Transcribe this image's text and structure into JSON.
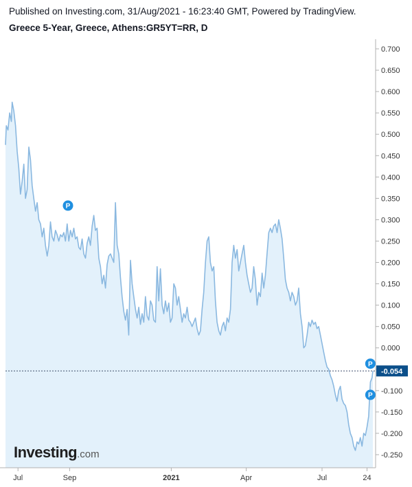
{
  "header": {
    "published": "Published on Investing.com, 31/Aug/2021 - 16:23:40 GMT, Powered by TradingView.",
    "symbol": "Greece 5-Year, Greece, Athens:GR5YT=RR, D"
  },
  "logo": {
    "main": "Investing",
    "suffix": ".com"
  },
  "chart_data": {
    "type": "area",
    "y_ticks": [
      "0.700",
      "0.650",
      "0.600",
      "0.550",
      "0.500",
      "0.450",
      "0.400",
      "0.350",
      "0.300",
      "0.250",
      "0.200",
      "0.150",
      "0.100",
      "0.050",
      "0.000",
      "-0.050",
      "-0.100",
      "-0.150",
      "-0.200",
      "-0.250"
    ],
    "ylim": [
      -0.28,
      0.72
    ],
    "x_ticks": [
      "Jul",
      "Sep",
      "2021",
      "Apr",
      "Jul",
      "24"
    ],
    "last_value_label": "-0.054",
    "last_value": -0.054,
    "grid": false,
    "colors": {
      "line": "#8ab8e0",
      "fill": "#e3f1fb",
      "marker": "#1f8fe0",
      "label_bg": "#0b4f8a",
      "dashed": "#3f4f6b"
    },
    "markers": [
      {
        "label": "P",
        "date": "2020-08-30",
        "y": 0.333
      },
      {
        "label": "P",
        "date": "2021-08-28",
        "y": -0.037
      },
      {
        "label": "P",
        "date": "2021-08-28",
        "y": -0.11
      }
    ],
    "series": [
      {
        "values": [
          [
            "2020-06-16",
            0.475
          ],
          [
            "2020-06-17",
            0.52
          ],
          [
            "2020-06-19",
            0.51
          ],
          [
            "2020-06-21",
            0.55
          ],
          [
            "2020-06-23",
            0.53
          ],
          [
            "2020-06-24",
            0.575
          ],
          [
            "2020-06-26",
            0.555
          ],
          [
            "2020-06-28",
            0.52
          ],
          [
            "2020-06-30",
            0.46
          ],
          [
            "2020-07-02",
            0.42
          ],
          [
            "2020-07-04",
            0.36
          ],
          [
            "2020-07-06",
            0.39
          ],
          [
            "2020-07-08",
            0.43
          ],
          [
            "2020-07-10",
            0.35
          ],
          [
            "2020-07-12",
            0.37
          ],
          [
            "2020-07-14",
            0.47
          ],
          [
            "2020-07-16",
            0.44
          ],
          [
            "2020-07-18",
            0.38
          ],
          [
            "2020-07-20",
            0.35
          ],
          [
            "2020-07-22",
            0.32
          ],
          [
            "2020-07-24",
            0.34
          ],
          [
            "2020-07-26",
            0.3
          ],
          [
            "2020-07-28",
            0.29
          ],
          [
            "2020-07-30",
            0.26
          ],
          [
            "2020-08-01",
            0.28
          ],
          [
            "2020-08-03",
            0.24
          ],
          [
            "2020-08-05",
            0.215
          ],
          [
            "2020-08-07",
            0.24
          ],
          [
            "2020-08-09",
            0.295
          ],
          [
            "2020-08-11",
            0.26
          ],
          [
            "2020-08-13",
            0.25
          ],
          [
            "2020-08-15",
            0.275
          ],
          [
            "2020-08-17",
            0.265
          ],
          [
            "2020-08-19",
            0.25
          ],
          [
            "2020-08-21",
            0.265
          ],
          [
            "2020-08-23",
            0.26
          ],
          [
            "2020-08-25",
            0.27
          ],
          [
            "2020-08-27",
            0.25
          ],
          [
            "2020-08-29",
            0.29
          ],
          [
            "2020-08-31",
            0.25
          ],
          [
            "2020-09-02",
            0.275
          ],
          [
            "2020-09-04",
            0.26
          ],
          [
            "2020-09-06",
            0.28
          ],
          [
            "2020-09-08",
            0.255
          ],
          [
            "2020-09-10",
            0.26
          ],
          [
            "2020-09-12",
            0.235
          ],
          [
            "2020-09-14",
            0.23
          ],
          [
            "2020-09-16",
            0.255
          ],
          [
            "2020-09-18",
            0.22
          ],
          [
            "2020-09-20",
            0.21
          ],
          [
            "2020-09-22",
            0.245
          ],
          [
            "2020-09-24",
            0.26
          ],
          [
            "2020-09-26",
            0.24
          ],
          [
            "2020-09-28",
            0.285
          ],
          [
            "2020-09-30",
            0.31
          ],
          [
            "2020-10-02",
            0.275
          ],
          [
            "2020-10-04",
            0.28
          ],
          [
            "2020-10-06",
            0.21
          ],
          [
            "2020-10-08",
            0.19
          ],
          [
            "2020-10-10",
            0.15
          ],
          [
            "2020-10-12",
            0.17
          ],
          [
            "2020-10-14",
            0.14
          ],
          [
            "2020-10-16",
            0.195
          ],
          [
            "2020-10-18",
            0.215
          ],
          [
            "2020-10-20",
            0.22
          ],
          [
            "2020-10-22",
            0.21
          ],
          [
            "2020-10-24",
            0.2
          ],
          [
            "2020-10-26",
            0.34
          ],
          [
            "2020-10-28",
            0.24
          ],
          [
            "2020-10-30",
            0.22
          ],
          [
            "2020-11-01",
            0.165
          ],
          [
            "2020-11-03",
            0.12
          ],
          [
            "2020-11-05",
            0.085
          ],
          [
            "2020-11-07",
            0.065
          ],
          [
            "2020-11-09",
            0.09
          ],
          [
            "2020-11-11",
            0.03
          ],
          [
            "2020-11-13",
            0.205
          ],
          [
            "2020-11-15",
            0.15
          ],
          [
            "2020-11-17",
            0.12
          ],
          [
            "2020-11-19",
            0.09
          ],
          [
            "2020-11-21",
            0.07
          ],
          [
            "2020-11-23",
            0.095
          ],
          [
            "2020-11-25",
            0.055
          ],
          [
            "2020-11-27",
            0.08
          ],
          [
            "2020-11-29",
            0.06
          ],
          [
            "2020-12-01",
            0.12
          ],
          [
            "2020-12-03",
            0.075
          ],
          [
            "2020-12-05",
            0.065
          ],
          [
            "2020-12-07",
            0.11
          ],
          [
            "2020-12-09",
            0.1
          ],
          [
            "2020-12-11",
            0.065
          ],
          [
            "2020-12-13",
            0.06
          ],
          [
            "2020-12-15",
            0.19
          ],
          [
            "2020-12-17",
            0.11
          ],
          [
            "2020-12-19",
            0.185
          ],
          [
            "2020-12-21",
            0.1
          ],
          [
            "2020-12-23",
            0.08
          ],
          [
            "2020-12-25",
            0.11
          ],
          [
            "2020-12-27",
            0.085
          ],
          [
            "2020-12-29",
            0.105
          ],
          [
            "2020-12-31",
            0.06
          ],
          [
            "2021-01-02",
            0.07
          ],
          [
            "2021-01-04",
            0.15
          ],
          [
            "2021-01-06",
            0.14
          ],
          [
            "2021-01-08",
            0.1
          ],
          [
            "2021-01-10",
            0.12
          ],
          [
            "2021-01-12",
            0.09
          ],
          [
            "2021-01-14",
            0.06
          ],
          [
            "2021-01-16",
            0.08
          ],
          [
            "2021-01-18",
            0.07
          ],
          [
            "2021-01-20",
            0.095
          ],
          [
            "2021-01-22",
            0.065
          ],
          [
            "2021-01-24",
            0.06
          ],
          [
            "2021-01-26",
            0.05
          ],
          [
            "2021-01-28",
            0.06
          ],
          [
            "2021-01-30",
            0.07
          ],
          [
            "2021-02-01",
            0.045
          ],
          [
            "2021-02-03",
            0.03
          ],
          [
            "2021-02-05",
            0.04
          ],
          [
            "2021-02-07",
            0.09
          ],
          [
            "2021-02-09",
            0.13
          ],
          [
            "2021-02-11",
            0.2
          ],
          [
            "2021-02-13",
            0.25
          ],
          [
            "2021-02-15",
            0.26
          ],
          [
            "2021-02-17",
            0.2
          ],
          [
            "2021-02-19",
            0.18
          ],
          [
            "2021-02-21",
            0.19
          ],
          [
            "2021-02-23",
            0.11
          ],
          [
            "2021-02-25",
            0.06
          ],
          [
            "2021-02-27",
            0.04
          ],
          [
            "2021-03-01",
            0.03
          ],
          [
            "2021-03-03",
            0.05
          ],
          [
            "2021-03-05",
            0.06
          ],
          [
            "2021-03-07",
            0.04
          ],
          [
            "2021-03-09",
            0.07
          ],
          [
            "2021-03-11",
            0.06
          ],
          [
            "2021-03-13",
            0.09
          ],
          [
            "2021-03-15",
            0.2
          ],
          [
            "2021-03-17",
            0.24
          ],
          [
            "2021-03-19",
            0.21
          ],
          [
            "2021-03-21",
            0.23
          ],
          [
            "2021-03-23",
            0.18
          ],
          [
            "2021-03-25",
            0.2
          ],
          [
            "2021-03-27",
            0.22
          ],
          [
            "2021-03-29",
            0.24
          ],
          [
            "2021-03-31",
            0.2
          ],
          [
            "2021-04-02",
            0.17
          ],
          [
            "2021-04-04",
            0.15
          ],
          [
            "2021-04-06",
            0.13
          ],
          [
            "2021-04-08",
            0.14
          ],
          [
            "2021-04-10",
            0.19
          ],
          [
            "2021-04-12",
            0.16
          ],
          [
            "2021-04-14",
            0.1
          ],
          [
            "2021-04-16",
            0.13
          ],
          [
            "2021-04-18",
            0.12
          ],
          [
            "2021-04-20",
            0.175
          ],
          [
            "2021-04-22",
            0.14
          ],
          [
            "2021-04-24",
            0.17
          ],
          [
            "2021-04-26",
            0.22
          ],
          [
            "2021-04-28",
            0.27
          ],
          [
            "2021-04-30",
            0.28
          ],
          [
            "2021-05-02",
            0.27
          ],
          [
            "2021-05-04",
            0.285
          ],
          [
            "2021-05-06",
            0.29
          ],
          [
            "2021-05-08",
            0.27
          ],
          [
            "2021-05-10",
            0.3
          ],
          [
            "2021-05-12",
            0.28
          ],
          [
            "2021-05-14",
            0.255
          ],
          [
            "2021-05-16",
            0.21
          ],
          [
            "2021-05-18",
            0.16
          ],
          [
            "2021-05-20",
            0.14
          ],
          [
            "2021-05-22",
            0.13
          ],
          [
            "2021-05-24",
            0.11
          ],
          [
            "2021-05-26",
            0.13
          ],
          [
            "2021-05-28",
            0.12
          ],
          [
            "2021-05-30",
            0.1
          ],
          [
            "2021-06-01",
            0.11
          ],
          [
            "2021-06-03",
            0.14
          ],
          [
            "2021-06-05",
            0.08
          ],
          [
            "2021-06-07",
            0.05
          ],
          [
            "2021-06-09",
            0.0
          ],
          [
            "2021-06-11",
            0.005
          ],
          [
            "2021-06-13",
            0.03
          ],
          [
            "2021-06-15",
            0.06
          ],
          [
            "2021-06-17",
            0.05
          ],
          [
            "2021-06-19",
            0.065
          ],
          [
            "2021-06-21",
            0.055
          ],
          [
            "2021-06-23",
            0.06
          ],
          [
            "2021-06-25",
            0.045
          ],
          [
            "2021-06-27",
            0.05
          ],
          [
            "2021-06-29",
            0.03
          ],
          [
            "2021-07-01",
            0.01
          ],
          [
            "2021-07-03",
            -0.01
          ],
          [
            "2021-07-05",
            -0.03
          ],
          [
            "2021-07-07",
            -0.045
          ],
          [
            "2021-07-09",
            -0.05
          ],
          [
            "2021-07-11",
            -0.065
          ],
          [
            "2021-07-13",
            -0.075
          ],
          [
            "2021-07-15",
            -0.09
          ],
          [
            "2021-07-17",
            -0.11
          ],
          [
            "2021-07-19",
            -0.125
          ],
          [
            "2021-07-21",
            -0.1
          ],
          [
            "2021-07-23",
            -0.09
          ],
          [
            "2021-07-25",
            -0.12
          ],
          [
            "2021-07-27",
            -0.13
          ],
          [
            "2021-07-29",
            -0.135
          ],
          [
            "2021-07-31",
            -0.15
          ],
          [
            "2021-08-02",
            -0.18
          ],
          [
            "2021-08-04",
            -0.2
          ],
          [
            "2021-08-06",
            -0.21
          ],
          [
            "2021-08-08",
            -0.23
          ],
          [
            "2021-08-10",
            -0.24
          ],
          [
            "2021-08-12",
            -0.22
          ],
          [
            "2021-08-14",
            -0.225
          ],
          [
            "2021-08-16",
            -0.21
          ],
          [
            "2021-08-18",
            -0.23
          ],
          [
            "2021-08-20",
            -0.2
          ],
          [
            "2021-08-22",
            -0.205
          ],
          [
            "2021-08-24",
            -0.185
          ],
          [
            "2021-08-26",
            -0.16
          ],
          [
            "2021-08-27",
            -0.12
          ],
          [
            "2021-08-28",
            -0.08
          ],
          [
            "2021-08-30",
            -0.07
          ],
          [
            "2021-08-31",
            -0.054
          ]
        ]
      }
    ]
  }
}
